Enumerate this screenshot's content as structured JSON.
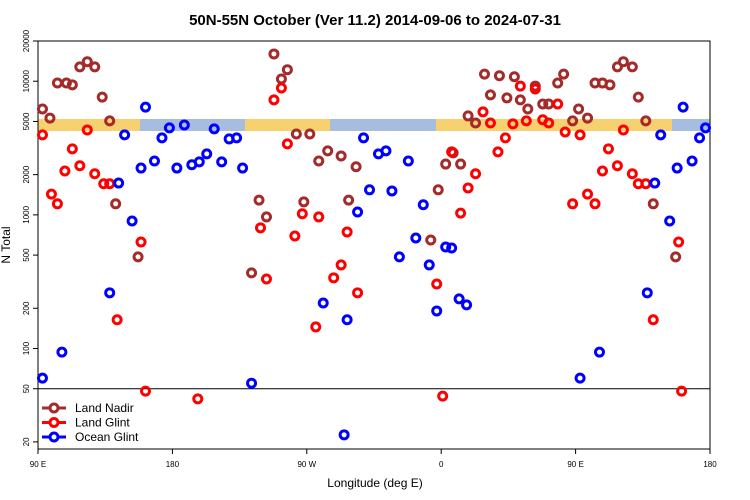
{
  "chart_data": {
    "type": "scatter",
    "title": "50N-55N October (Ver 11.2)   2014-09-06 to 2024-07-31",
    "x_label": "Longitude (deg E)",
    "y_label": "N Total",
    "log_y": true,
    "xlim": [
      90,
      540
    ],
    "ylim": [
      17.7,
      20000
    ],
    "xticks": [
      {
        "value": 90,
        "label": "90 E"
      },
      180,
      {
        "value": 270,
        "label": "90 W"
      },
      {
        "value": 360,
        "label": "0"
      },
      {
        "value": 450,
        "label": "90 E"
      },
      {
        "value": 540,
        "label": "180"
      }
    ],
    "yticks": [
      20,
      50,
      100,
      200,
      500,
      1000,
      2000,
      5000,
      10000,
      20000
    ],
    "reference_line": 50,
    "legend": "bottom-left",
    "series": [
      {
        "name": "Land Nadir",
        "color": "#a52a2a",
        "x": [
          93,
          98,
          103,
          109,
          113,
          118,
          123,
          128,
          133,
          138,
          142,
          157,
          233,
          238,
          243,
          248,
          253,
          257,
          263,
          268,
          272,
          278,
          284,
          293,
          298,
          303,
          353,
          358,
          363,
          368,
          373,
          378,
          383,
          389,
          393,
          399,
          404,
          409,
          413,
          418,
          423,
          428,
          432,
          438,
          442,
          448,
          452,
          458,
          463,
          468,
          473,
          478,
          482,
          488,
          492,
          497,
          502,
          517
        ],
        "values": [
          6200,
          5300,
          9700,
          9700,
          9400,
          12800,
          14000,
          12800,
          7600,
          5050,
          1210,
          485,
          368,
          1290,
          965,
          16000,
          10400,
          12200,
          4030,
          1250,
          4030,
          2530,
          3010,
          2760,
          1290,
          2290,
          648,
          1540,
          2400,
          2910,
          2400,
          5500,
          4870,
          11300,
          7900,
          11000,
          7500,
          10800,
          7250,
          6200,
          9200,
          6750,
          6750,
          9700,
          11300,
          5050,
          6200,
          5300,
          9700,
          9700,
          9400,
          12800,
          14000,
          12800,
          7600,
          5050,
          1210,
          485
        ]
      },
      {
        "name": "Land Glint",
        "color": "#ff0000",
        "x": [
          93,
          99,
          103,
          108,
          113,
          118,
          123,
          128,
          134,
          138,
          143,
          159,
          162,
          197,
          239,
          243,
          248,
          253,
          257,
          262,
          267,
          276,
          278,
          288,
          293,
          297,
          304,
          357,
          361,
          367,
          373,
          378,
          383,
          388,
          393,
          398,
          403,
          408,
          413,
          417,
          423,
          428,
          432,
          438,
          443,
          448,
          453,
          458,
          463,
          468,
          472,
          478,
          482,
          488,
          492,
          497,
          502,
          519,
          521
        ],
        "values": [
          3970,
          1430,
          1210,
          2130,
          3120,
          2330,
          4320,
          2030,
          1710,
          1710,
          164,
          627,
          48,
          42,
          800,
          331,
          7250,
          8900,
          3400,
          695,
          1020,
          145,
          965,
          338,
          422,
          745,
          261,
          304,
          44,
          2960,
          1030,
          1590,
          2030,
          5900,
          4870,
          2960,
          3770,
          4800,
          9200,
          5050,
          8750,
          5150,
          4870,
          6750,
          4170,
          1210,
          3970,
          1430,
          1210,
          2130,
          3120,
          2330,
          4320,
          2030,
          1710,
          1710,
          164,
          627,
          48
        ]
      },
      {
        "name": "Ocean Glint",
        "color": "#0000ff",
        "x": [
          93,
          106,
          138,
          144,
          148,
          153,
          159,
          162,
          168,
          173,
          178,
          183,
          188,
          193,
          198,
          203,
          208,
          213,
          218,
          223,
          227,
          233,
          281,
          295,
          297,
          304,
          308,
          312,
          318,
          323,
          327,
          332,
          338,
          343,
          348,
          352,
          357,
          363,
          367,
          372,
          377,
          453,
          466,
          498,
          503,
          507,
          513,
          518,
          522,
          528,
          533,
          537
        ],
        "values": [
          60,
          94,
          261,
          1730,
          3970,
          900,
          2240,
          6400,
          2530,
          3770,
          4480,
          2240,
          4700,
          2370,
          2490,
          2860,
          4400,
          2490,
          3700,
          3770,
          2240,
          55,
          219,
          22.6,
          164,
          1050,
          3770,
          1540,
          2860,
          3010,
          1510,
          485,
          2530,
          671,
          1190,
          422,
          191,
          575,
          565,
          235,
          212,
          60,
          94,
          261,
          1730,
          3970,
          900,
          2240,
          6400,
          2530,
          3770,
          4480
        ]
      }
    ]
  }
}
